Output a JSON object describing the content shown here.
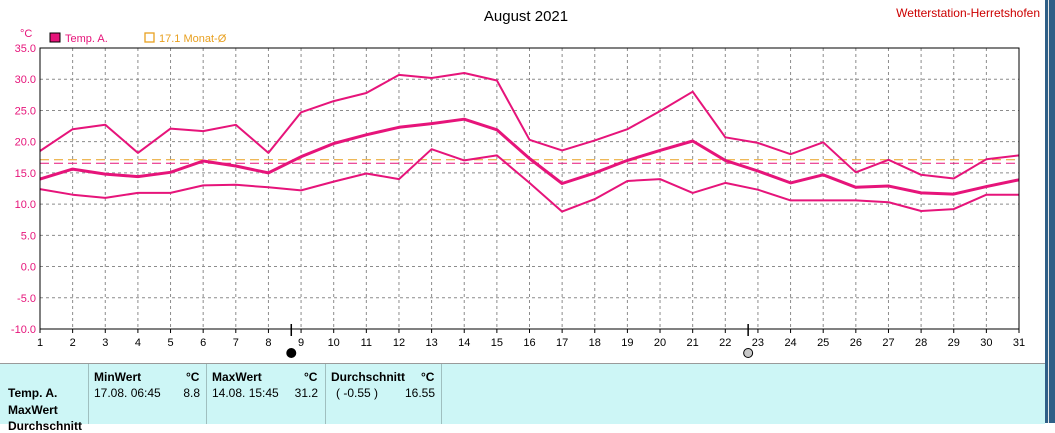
{
  "station": "Wetterstation-Herretshofen",
  "colors": {
    "series": "#e6147a",
    "avg": "#e8a020",
    "grid": "#9a9a9a",
    "text": "#000000",
    "station": "#cc0000"
  },
  "chart_data": {
    "type": "line",
    "title": "August 2021",
    "ylabel": "°C",
    "ylim": [
      -10,
      35
    ],
    "yticks": [
      "35.0",
      "30.0",
      "25.0",
      "20.0",
      "15.0",
      "10.0",
      "5.0",
      "0.0",
      "-5.0",
      "-10.0"
    ],
    "x": [
      1,
      2,
      3,
      4,
      5,
      6,
      7,
      8,
      9,
      10,
      11,
      12,
      13,
      14,
      15,
      16,
      17,
      18,
      19,
      20,
      21,
      22,
      23,
      24,
      25,
      26,
      27,
      28,
      29,
      30,
      31
    ],
    "legend": [
      {
        "label": "Temp. A.",
        "swatch": "filled"
      },
      {
        "label": "17.1 Monat-Ø",
        "swatch": "outline"
      }
    ],
    "grid": true,
    "series": [
      {
        "role": "max",
        "values": [
          18.5,
          22,
          22.7,
          18.2,
          22.1,
          21.7,
          22.7,
          18.2,
          24.7,
          26.5,
          27.8,
          30.7,
          30.2,
          31.0,
          29.8,
          20.3,
          18.6,
          20.2,
          22.0,
          24.9,
          28.0,
          20.7,
          19.8,
          18.0,
          19.9,
          15.1,
          17.1,
          14.7,
          14.1,
          17.2,
          17.8
        ]
      },
      {
        "role": "mean",
        "values": [
          14.0,
          15.6,
          14.8,
          14.4,
          15.1,
          16.9,
          16.1,
          15.0,
          17.6,
          19.7,
          21.1,
          22.3,
          22.9,
          23.6,
          21.9,
          17.3,
          13.3,
          15.0,
          17.0,
          18.6,
          20.1,
          17.0,
          15.3,
          13.4,
          14.7,
          12.7,
          12.9,
          11.8,
          11.6,
          12.8,
          13.9
        ]
      },
      {
        "role": "min",
        "values": [
          12.4,
          11.5,
          11.0,
          11.8,
          11.8,
          13.0,
          13.1,
          12.7,
          12.2,
          13.6,
          14.9,
          14.0,
          18.8,
          17.0,
          17.8,
          13.4,
          8.8,
          10.8,
          13.7,
          14.0,
          11.8,
          13.4,
          12.3,
          10.6,
          10.6,
          10.6,
          10.3,
          8.9,
          9.2,
          11.5,
          11.5
        ]
      }
    ],
    "reference_lines": [
      {
        "value": 17.1,
        "color": "#e8a020"
      },
      {
        "value": 16.55,
        "color": "#e6147a"
      }
    ],
    "marker_days": [
      {
        "x": 8.7,
        "symbol": "new-moon"
      },
      {
        "x": 22.7,
        "symbol": "full-moon"
      }
    ]
  },
  "table": {
    "rows": [
      "Temp. A.",
      "MaxWert",
      "Durchschnitt"
    ],
    "min": {
      "header": "MinWert",
      "unit": "°C",
      "time": "17.08.  06:45",
      "value": "8.8"
    },
    "max": {
      "header": "MaxWert",
      "unit": "°C",
      "time": "14.08.  15:45",
      "value": "31.2"
    },
    "avg": {
      "header": "Durchschnitt",
      "unit": "°C",
      "delta": "( -0.55 )",
      "value": "16.55"
    }
  }
}
